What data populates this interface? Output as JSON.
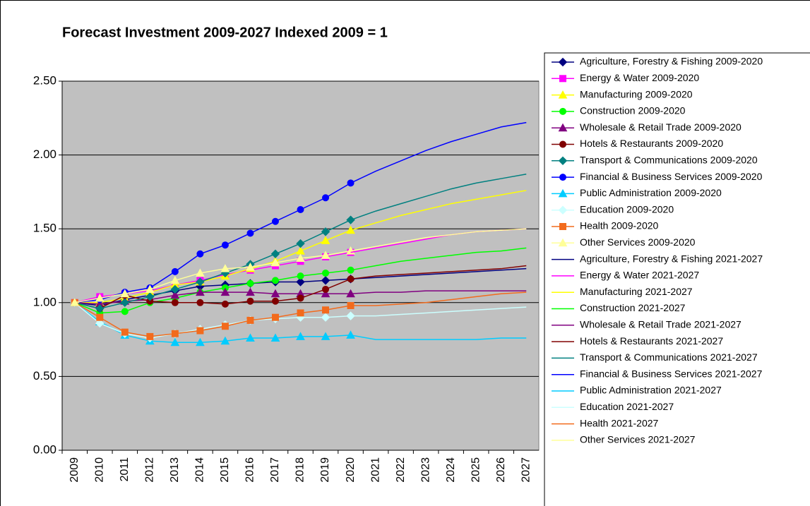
{
  "chart_data": {
    "type": "line",
    "title": "Forecast Investment 2009-2027 Indexed 2009 = 1",
    "categories": [
      "2009",
      "2010",
      "2011",
      "2012",
      "2013",
      "2014",
      "2015",
      "2016",
      "2017",
      "2018",
      "2019",
      "2020",
      "2021",
      "2022",
      "2023",
      "2024",
      "2025",
      "2026",
      "2027"
    ],
    "ylim": [
      0,
      2.5
    ],
    "yticks": [
      {
        "value": 0,
        "label": "0.00"
      },
      {
        "value": 0.5,
        "label": "0.50"
      },
      {
        "value": 1,
        "label": "1.00"
      },
      {
        "value": 1.5,
        "label": "1.50"
      },
      {
        "value": 2,
        "label": "2.00"
      },
      {
        "value": 2.5,
        "label": "2.50"
      }
    ],
    "grid": true,
    "plot_background": "#c0c0c0",
    "legend": "right",
    "series": [
      {
        "name": "Agriculture, Forestry & Fishing 2009-2020",
        "color": "#000080",
        "marker": "diamond",
        "values": [
          1.0,
          0.98,
          1.02,
          1.05,
          1.08,
          1.11,
          1.12,
          1.13,
          1.14,
          1.14,
          1.15,
          1.16,
          null,
          null,
          null,
          null,
          null,
          null,
          null
        ]
      },
      {
        "name": "Energy & Water 2009-2020",
        "color": "#ff00ff",
        "marker": "square",
        "values": [
          1.0,
          1.04,
          1.06,
          1.08,
          1.12,
          1.15,
          1.19,
          1.22,
          1.25,
          1.28,
          1.31,
          1.34,
          null,
          null,
          null,
          null,
          null,
          null,
          null
        ]
      },
      {
        "name": "Manufacturing 2009-2020",
        "color": "#ffff00",
        "marker": "triangle",
        "values": [
          1.0,
          1.0,
          1.03,
          1.07,
          1.12,
          1.14,
          1.18,
          1.23,
          1.28,
          1.35,
          1.42,
          1.49,
          null,
          null,
          null,
          null,
          null,
          null,
          null
        ]
      },
      {
        "name": "Construction 2009-2020",
        "color": "#00ff00",
        "marker": "circle",
        "values": [
          1.0,
          0.93,
          0.94,
          1.0,
          1.03,
          1.07,
          1.1,
          1.13,
          1.15,
          1.18,
          1.2,
          1.22,
          null,
          null,
          null,
          null,
          null,
          null,
          null
        ]
      },
      {
        "name": "Wholesale & Retail Trade 2009-2020",
        "color": "#800080",
        "marker": "triangle",
        "values": [
          1.0,
          0.99,
          1.01,
          1.02,
          1.05,
          1.07,
          1.07,
          1.07,
          1.06,
          1.06,
          1.06,
          1.06,
          null,
          null,
          null,
          null,
          null,
          null,
          null
        ]
      },
      {
        "name": "Hotels & Restaurants 2009-2020",
        "color": "#800000",
        "marker": "circle",
        "values": [
          1.0,
          0.96,
          1.05,
          1.01,
          1.0,
          1.0,
          0.99,
          1.01,
          1.01,
          1.03,
          1.09,
          1.16,
          null,
          null,
          null,
          null,
          null,
          null,
          null
        ]
      },
      {
        "name": "Transport & Communications 2009-2020",
        "color": "#008080",
        "marker": "diamond",
        "values": [
          1.0,
          0.96,
          1.0,
          1.04,
          1.09,
          1.14,
          1.2,
          1.26,
          1.33,
          1.4,
          1.48,
          1.56,
          null,
          null,
          null,
          null,
          null,
          null,
          null
        ]
      },
      {
        "name": "Financial & Business Services 2009-2020",
        "color": "#0000ff",
        "marker": "circle",
        "values": [
          1.0,
          1.02,
          1.07,
          1.1,
          1.21,
          1.33,
          1.39,
          1.47,
          1.55,
          1.63,
          1.71,
          1.81,
          null,
          null,
          null,
          null,
          null,
          null,
          null
        ]
      },
      {
        "name": "Public Administration 2009-2020",
        "color": "#00ccff",
        "marker": "triangle",
        "values": [
          1.0,
          0.87,
          0.78,
          0.74,
          0.73,
          0.73,
          0.74,
          0.76,
          0.76,
          0.77,
          0.77,
          0.78,
          null,
          null,
          null,
          null,
          null,
          null,
          null
        ]
      },
      {
        "name": "Education 2009-2020",
        "color": "#ccffff",
        "marker": "diamond",
        "values": [
          1.0,
          0.86,
          0.79,
          0.76,
          0.79,
          0.82,
          0.85,
          0.88,
          0.89,
          0.9,
          0.9,
          0.91,
          null,
          null,
          null,
          null,
          null,
          null,
          null
        ]
      },
      {
        "name": "Health 2009-2020",
        "color": "#f26b1d",
        "marker": "square",
        "values": [
          1.0,
          0.9,
          0.8,
          0.77,
          0.79,
          0.81,
          0.84,
          0.88,
          0.9,
          0.93,
          0.95,
          0.98,
          null,
          null,
          null,
          null,
          null,
          null,
          null
        ]
      },
      {
        "name": "Other Services 2009-2020",
        "color": "#ffff99",
        "marker": "triangle",
        "values": [
          1.0,
          1.03,
          1.06,
          1.09,
          1.15,
          1.2,
          1.23,
          1.24,
          1.27,
          1.3,
          1.32,
          1.35,
          null,
          null,
          null,
          null,
          null,
          null,
          null
        ]
      },
      {
        "name": "Agriculture, Forestry & Fishing 2021-2027",
        "color": "#000080",
        "values": [
          null,
          null,
          null,
          null,
          null,
          null,
          null,
          null,
          null,
          null,
          null,
          1.16,
          1.17,
          1.18,
          1.19,
          1.2,
          1.21,
          1.22,
          1.23
        ]
      },
      {
        "name": "Energy & Water 2021-2027",
        "color": "#ff00ff",
        "values": [
          null,
          null,
          null,
          null,
          null,
          null,
          null,
          null,
          null,
          null,
          null,
          1.34,
          1.37,
          1.4,
          1.43,
          1.46,
          1.48,
          1.49,
          1.5
        ]
      },
      {
        "name": "Manufacturing 2021-2027",
        "color": "#ffff00",
        "values": [
          null,
          null,
          null,
          null,
          null,
          null,
          null,
          null,
          null,
          null,
          null,
          1.49,
          1.54,
          1.59,
          1.63,
          1.67,
          1.7,
          1.73,
          1.76
        ]
      },
      {
        "name": "Construction 2021-2027",
        "color": "#00ff00",
        "values": [
          null,
          null,
          null,
          null,
          null,
          null,
          null,
          null,
          null,
          null,
          null,
          1.22,
          1.25,
          1.28,
          1.3,
          1.32,
          1.34,
          1.35,
          1.37
        ]
      },
      {
        "name": "Wholesale & Retail Trade 2021-2027",
        "color": "#800080",
        "values": [
          null,
          null,
          null,
          null,
          null,
          null,
          null,
          null,
          null,
          null,
          null,
          1.06,
          1.07,
          1.07,
          1.08,
          1.08,
          1.08,
          1.08,
          1.08
        ]
      },
      {
        "name": "Hotels & Restaurants 2021-2027",
        "color": "#800000",
        "values": [
          null,
          null,
          null,
          null,
          null,
          null,
          null,
          null,
          null,
          null,
          null,
          1.16,
          1.18,
          1.19,
          1.2,
          1.21,
          1.22,
          1.23,
          1.25
        ]
      },
      {
        "name": "Transport & Communications 2021-2027",
        "color": "#008080",
        "values": [
          null,
          null,
          null,
          null,
          null,
          null,
          null,
          null,
          null,
          null,
          null,
          1.56,
          1.62,
          1.67,
          1.72,
          1.77,
          1.81,
          1.84,
          1.87
        ]
      },
      {
        "name": "Financial & Business Services 2021-2027",
        "color": "#0000ff",
        "values": [
          null,
          null,
          null,
          null,
          null,
          null,
          null,
          null,
          null,
          null,
          null,
          1.81,
          1.89,
          1.96,
          2.03,
          2.09,
          2.14,
          2.19,
          2.22
        ]
      },
      {
        "name": "Public Administration 2021-2027",
        "color": "#00ccff",
        "values": [
          null,
          null,
          null,
          null,
          null,
          null,
          null,
          null,
          null,
          null,
          null,
          0.78,
          0.75,
          0.75,
          0.75,
          0.75,
          0.75,
          0.76,
          0.76
        ]
      },
      {
        "name": "Education 2021-2027",
        "color": "#ccffff",
        "values": [
          null,
          null,
          null,
          null,
          null,
          null,
          null,
          null,
          null,
          null,
          null,
          0.91,
          0.91,
          0.92,
          0.93,
          0.94,
          0.95,
          0.96,
          0.97
        ]
      },
      {
        "name": "Health 2021-2027",
        "color": "#f26b1d",
        "values": [
          null,
          null,
          null,
          null,
          null,
          null,
          null,
          null,
          null,
          null,
          null,
          0.98,
          0.98,
          0.99,
          1.0,
          1.02,
          1.04,
          1.06,
          1.07
        ]
      },
      {
        "name": "Other Services 2021-2027",
        "color": "#ffff99",
        "values": [
          null,
          null,
          null,
          null,
          null,
          null,
          null,
          null,
          null,
          null,
          null,
          1.35,
          1.38,
          1.41,
          1.44,
          1.46,
          1.48,
          1.49,
          1.5
        ]
      }
    ]
  }
}
